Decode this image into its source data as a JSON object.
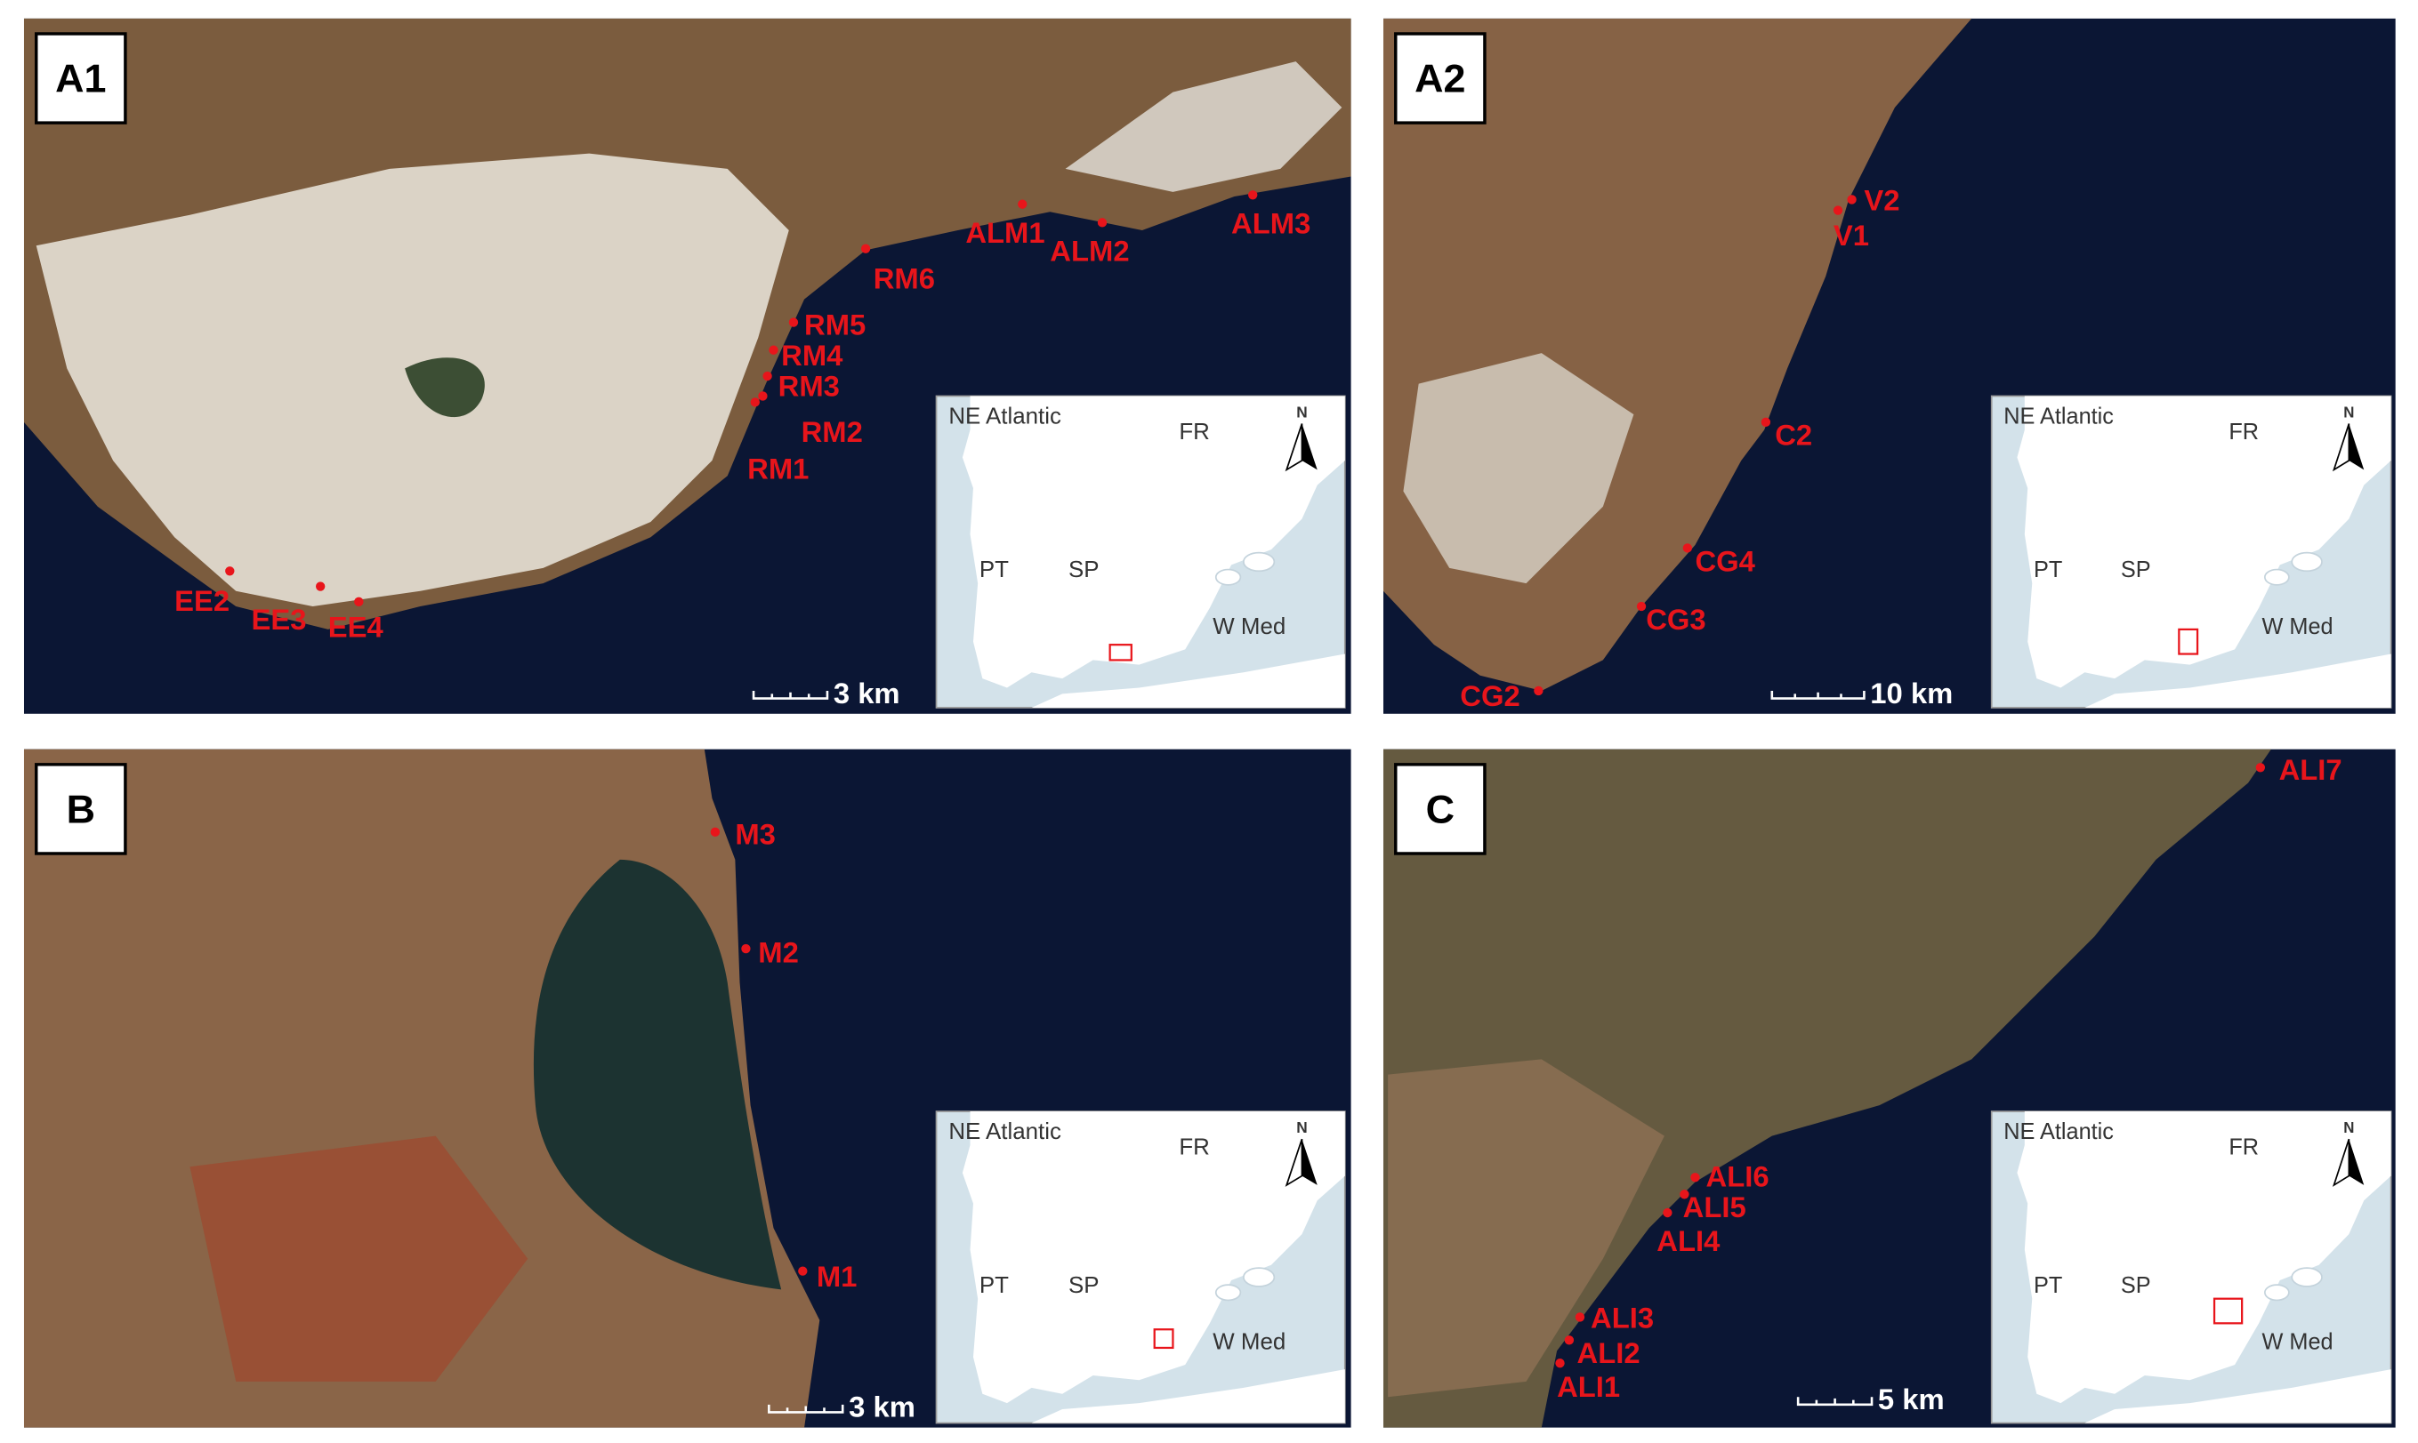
{
  "panels": [
    {
      "label": "A1",
      "sites": [
        "RM6",
        "RM5",
        "RM4",
        "RM3",
        "RM2",
        "RM1",
        "EE2",
        "EE3",
        "EE4",
        "ALM1",
        "ALM2",
        "ALM3"
      ],
      "scale": "3 km",
      "inset": {
        "sea": "NE Atlantic",
        "north": "N",
        "labels": [
          "FR",
          "PT",
          "SP",
          "W Med"
        ]
      }
    },
    {
      "label": "A2",
      "sites": [
        "V2",
        "V1",
        "C2",
        "CG4",
        "CG3",
        "CG2"
      ],
      "scale": "10 km",
      "inset": {
        "sea": "NE Atlantic",
        "north": "N",
        "labels": [
          "FR",
          "PT",
          "SP",
          "W Med"
        ]
      }
    },
    {
      "label": "B",
      "sites": [
        "M3",
        "M2",
        "M1"
      ],
      "scale": "3 km",
      "inset": {
        "sea": "NE Atlantic",
        "north": "N",
        "labels": [
          "FR",
          "PT",
          "SP",
          "W Med"
        ]
      }
    },
    {
      "label": "C",
      "sites": [
        "ALI7",
        "ALI6",
        "ALI5",
        "ALI4",
        "ALI3",
        "ALI2",
        "ALI1"
      ],
      "scale": "5 km",
      "inset": {
        "sea": "NE Atlantic",
        "north": "N",
        "labels": [
          "FR",
          "PT",
          "SP",
          "W Med"
        ]
      }
    }
  ]
}
